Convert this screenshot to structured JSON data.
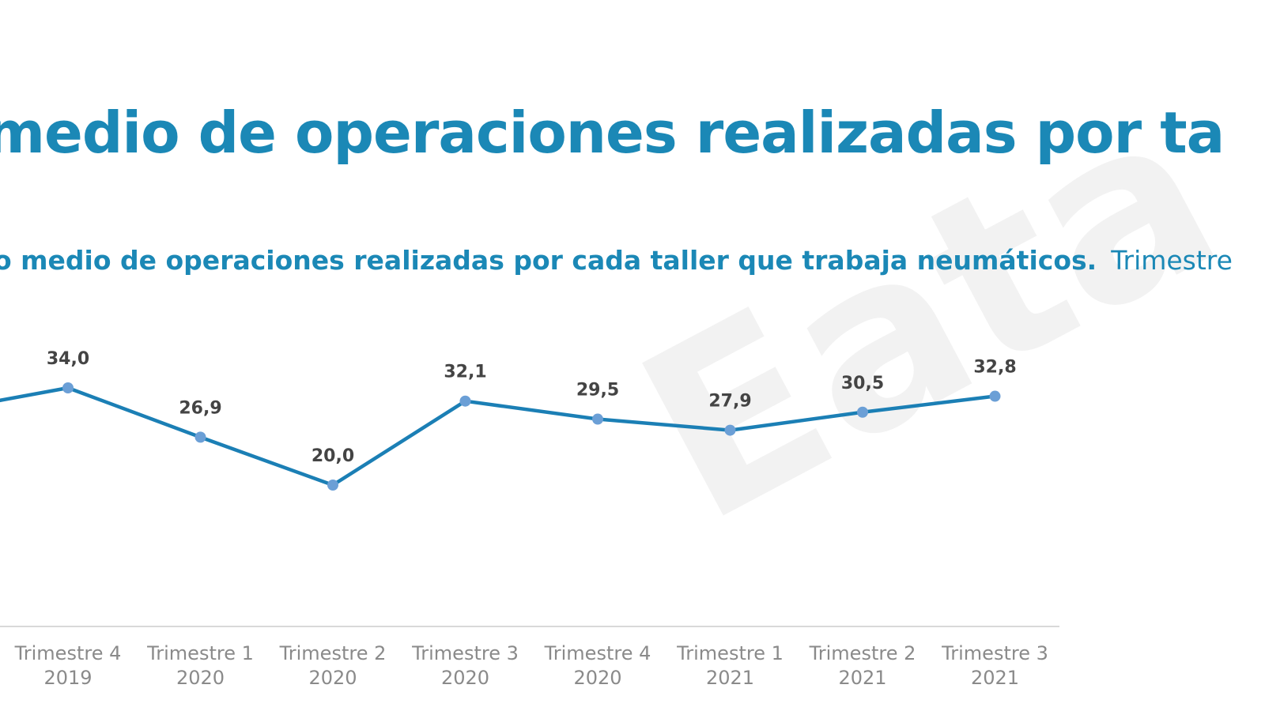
{
  "title": "medio de operaciones realizadas por ta",
  "subtitle": "o medio de operaciones realizadas por cada taller que trabaja neumáticos.",
  "subtitle_extra": "Trimestre",
  "watermark": "Eata",
  "colors": {
    "title": "#1b88b6",
    "line": "#1b7fb5",
    "marker": "#6b9fd6",
    "axis": "#d9d9d9",
    "label": "#444444",
    "tick": "#8a8a8a"
  },
  "chart_data": {
    "type": "line",
    "categories": [
      [
        "Trimestre 4",
        "2019"
      ],
      [
        "Trimestre 1",
        "2020"
      ],
      [
        "Trimestre 2",
        "2020"
      ],
      [
        "Trimestre 3",
        "2020"
      ],
      [
        "Trimestre 4",
        "2020"
      ],
      [
        "Trimestre 1",
        "2021"
      ],
      [
        "Trimestre 2",
        "2021"
      ],
      [
        "Trimestre 3",
        "2021"
      ]
    ],
    "values": [
      34.0,
      26.9,
      20.0,
      32.1,
      29.5,
      27.9,
      30.5,
      32.8
    ],
    "labels": [
      "34,0",
      "26,9",
      "20,0",
      "32,1",
      "29,5",
      "27,9",
      "30,5",
      "32,8"
    ],
    "leading_partial_value": 30.5,
    "ylim": [
      10,
      40
    ],
    "grid": false,
    "legend": "none"
  }
}
